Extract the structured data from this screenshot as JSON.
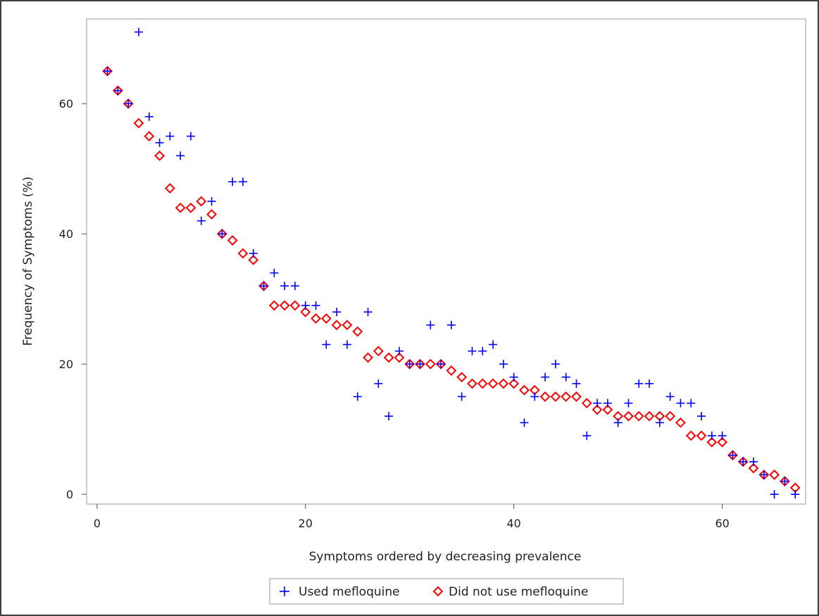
{
  "chart_data": {
    "type": "scatter",
    "xlabel": "Symptoms ordered by decreasing prevalence",
    "ylabel": "Frequency of Symptoms (%)",
    "xlim": [
      -1,
      68
    ],
    "ylim": [
      -1.5,
      73
    ],
    "x_ticks": [
      0,
      20,
      40,
      60
    ],
    "y_ticks": [
      0,
      20,
      40,
      60
    ],
    "x_tick_labels": [
      "0",
      "20",
      "40",
      "60"
    ],
    "y_tick_labels": [
      "0",
      "20",
      "40",
      "60"
    ],
    "grid": false,
    "legend_position": "bottom",
    "series": [
      {
        "name": "Used mefloquine",
        "marker": "plus",
        "color": "#0000ff",
        "x": [
          1,
          2,
          3,
          4,
          5,
          6,
          7,
          8,
          9,
          10,
          11,
          12,
          13,
          14,
          15,
          16,
          17,
          18,
          19,
          20,
          21,
          22,
          23,
          24,
          25,
          26,
          27,
          28,
          29,
          30,
          31,
          32,
          33,
          34,
          35,
          36,
          37,
          38,
          39,
          40,
          41,
          42,
          43,
          44,
          45,
          46,
          47,
          48,
          49,
          50,
          51,
          52,
          53,
          54,
          55,
          56,
          57,
          58,
          59,
          60,
          61,
          62,
          63,
          64,
          65,
          66,
          67
        ],
        "y": [
          65,
          62,
          60,
          71,
          58,
          54,
          55,
          52,
          55,
          42,
          45,
          40,
          48,
          48,
          37,
          32,
          34,
          32,
          32,
          29,
          29,
          23,
          28,
          23,
          15,
          28,
          17,
          12,
          22,
          20,
          20,
          26,
          20,
          26,
          15,
          22,
          22,
          23,
          20,
          18,
          11,
          15,
          18,
          20,
          18,
          17,
          9,
          14,
          14,
          11,
          14,
          17,
          17,
          11,
          15,
          14,
          14,
          12,
          9,
          9,
          6,
          5,
          5,
          3,
          0,
          2,
          0
        ]
      },
      {
        "name": "Did not use mefloquine",
        "marker": "diamond",
        "color": "#ff0000",
        "x": [
          1,
          2,
          3,
          4,
          5,
          6,
          7,
          8,
          9,
          10,
          11,
          12,
          13,
          14,
          15,
          16,
          17,
          18,
          19,
          20,
          21,
          22,
          23,
          24,
          25,
          26,
          27,
          28,
          29,
          30,
          31,
          32,
          33,
          34,
          35,
          36,
          37,
          38,
          39,
          40,
          41,
          42,
          43,
          44,
          45,
          46,
          47,
          48,
          49,
          50,
          51,
          52,
          53,
          54,
          55,
          56,
          57,
          58,
          59,
          60,
          61,
          62,
          63,
          64,
          65,
          66,
          67
        ],
        "y": [
          65,
          62,
          60,
          57,
          55,
          52,
          47,
          44,
          44,
          45,
          43,
          40,
          39,
          37,
          36,
          32,
          29,
          29,
          29,
          28,
          27,
          27,
          26,
          26,
          25,
          21,
          22,
          21,
          21,
          20,
          20,
          20,
          20,
          19,
          18,
          17,
          17,
          17,
          17,
          17,
          16,
          16,
          15,
          15,
          15,
          15,
          14,
          13,
          13,
          12,
          12,
          12,
          12,
          12,
          12,
          11,
          9,
          9,
          8,
          8,
          6,
          5,
          4,
          3,
          3,
          2,
          1
        ]
      }
    ]
  }
}
